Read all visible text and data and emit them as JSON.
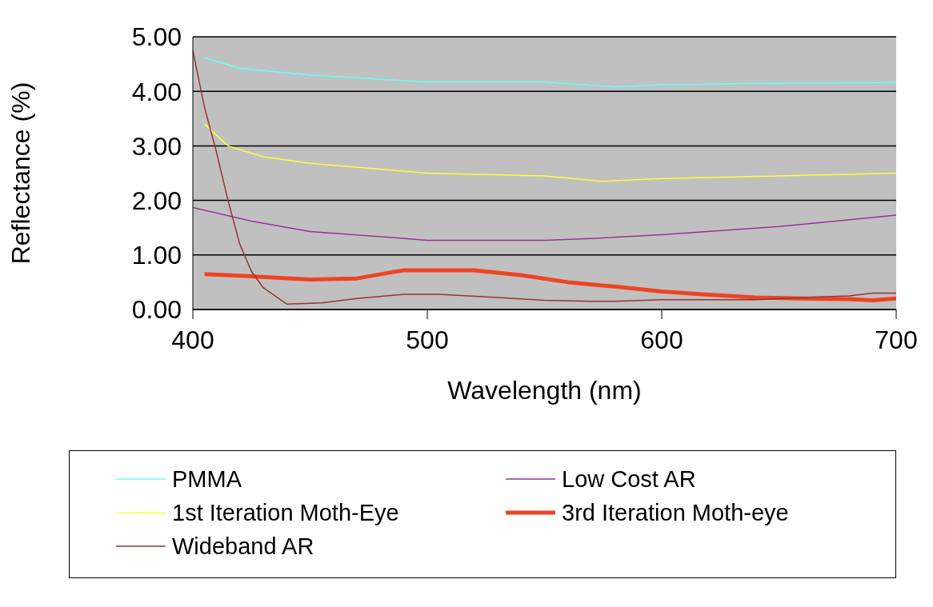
{
  "chart_data": {
    "type": "line",
    "xlabel": "Wavelength (nm)",
    "ylabel": "Reflectance (%)",
    "xlim": [
      400,
      700
    ],
    "xticks": [
      400,
      500,
      600,
      700
    ],
    "ylim": [
      0,
      5
    ],
    "yticks": [
      {
        "value": 0,
        "label": "0.00"
      },
      {
        "value": 1,
        "label": "1.00"
      },
      {
        "value": 2,
        "label": "2.00"
      },
      {
        "value": 3,
        "label": "3.00"
      },
      {
        "value": 4,
        "label": "4.00"
      },
      {
        "value": 5,
        "label": "5.00"
      }
    ],
    "grid": "y",
    "legend": "bottom",
    "marker": "none",
    "line_style": "solid",
    "series": [
      {
        "name": "PMMA",
        "color": "#66ffff",
        "x": [
          405,
          420,
          450,
          500,
          550,
          580,
          600,
          650,
          700
        ],
        "values": [
          4.62,
          4.42,
          4.3,
          4.17,
          4.17,
          4.08,
          4.12,
          4.15,
          4.16
        ]
      },
      {
        "name": "Low Cost AR",
        "color": "#993399",
        "x": [
          400,
          425,
          450,
          500,
          550,
          570,
          600,
          650,
          700
        ],
        "values": [
          1.87,
          1.62,
          1.43,
          1.27,
          1.27,
          1.3,
          1.37,
          1.52,
          1.73
        ]
      },
      {
        "name": "1st Iteration Moth-Eye",
        "color": "#ffff33",
        "x": [
          405,
          415,
          430,
          450,
          500,
          550,
          575,
          600,
          650,
          700
        ],
        "values": [
          3.4,
          3.0,
          2.8,
          2.68,
          2.5,
          2.45,
          2.35,
          2.4,
          2.45,
          2.5
        ]
      },
      {
        "name": "3rd Iteration Moth-eye",
        "color": "#ee4422",
        "x": [
          405,
          420,
          450,
          470,
          490,
          520,
          540,
          560,
          580,
          600,
          620,
          640,
          660,
          680,
          690,
          700
        ],
        "values": [
          0.65,
          0.62,
          0.55,
          0.57,
          0.72,
          0.72,
          0.63,
          0.5,
          0.42,
          0.33,
          0.27,
          0.22,
          0.2,
          0.19,
          0.17,
          0.2
        ]
      },
      {
        "name": "Wideband AR",
        "color": "#993333",
        "x": [
          400,
          405,
          410,
          415,
          420,
          425,
          430,
          440,
          455,
          470,
          490,
          505,
          530,
          550,
          570,
          580,
          600,
          640,
          660,
          680,
          690,
          700
        ],
        "values": [
          4.75,
          3.7,
          2.9,
          2.0,
          1.2,
          0.7,
          0.4,
          0.1,
          0.12,
          0.2,
          0.28,
          0.28,
          0.22,
          0.17,
          0.15,
          0.15,
          0.18,
          0.18,
          0.22,
          0.25,
          0.3,
          0.3
        ]
      }
    ]
  }
}
